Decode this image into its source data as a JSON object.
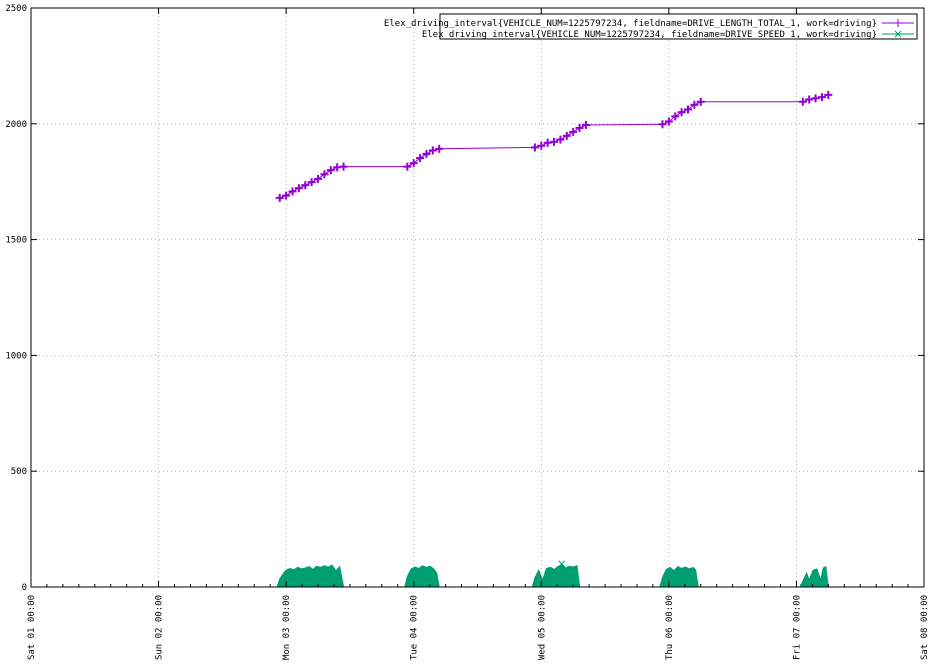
{
  "chart_data": {
    "type": "line",
    "title": "",
    "xlabel": "",
    "ylabel": "",
    "grid": true,
    "legend_position": "top-right",
    "ylim": [
      0,
      2500
    ],
    "yticks": [
      0,
      500,
      1000,
      1500,
      2000,
      2500
    ],
    "ytick_labels": [
      "0",
      "500",
      "1000",
      "1500",
      "2000",
      "2500"
    ],
    "xlim_days": [
      0,
      7
    ],
    "xticks": [
      {
        "day": 0,
        "label": "Sat 01 00:00"
      },
      {
        "day": 1,
        "label": "Sun 02 00:00"
      },
      {
        "day": 2,
        "label": "Mon 03 00:00"
      },
      {
        "day": 3,
        "label": "Tue 04 00:00"
      },
      {
        "day": 4,
        "label": "Wed 05 00:00"
      },
      {
        "day": 5,
        "label": "Thu 06 00:00"
      },
      {
        "day": 6,
        "label": "Fri 07 00:00"
      },
      {
        "day": 7,
        "label": "Sat 08 00:00"
      }
    ],
    "series": [
      {
        "name": "Elex_driving_interval{VEHICLE_NUM=1225797234, fieldname=DRIVE_LENGTH_TOTAL_1, work=driving}",
        "color": "#9400d3",
        "style": "linespoints",
        "marker": "plus",
        "points": [
          [
            1.95,
            1680
          ],
          [
            2.0,
            1690
          ],
          [
            2.05,
            1708
          ],
          [
            2.1,
            1722
          ],
          [
            2.15,
            1735
          ],
          [
            2.2,
            1748
          ],
          [
            2.25,
            1762
          ],
          [
            2.3,
            1782
          ],
          [
            2.35,
            1800
          ],
          [
            2.4,
            1812
          ],
          [
            2.45,
            1815
          ],
          [
            2.95,
            1815
          ],
          [
            3.0,
            1830
          ],
          [
            3.05,
            1852
          ],
          [
            3.1,
            1870
          ],
          [
            3.15,
            1885
          ],
          [
            3.2,
            1892
          ],
          [
            3.95,
            1898
          ],
          [
            4.0,
            1905
          ],
          [
            4.05,
            1918
          ],
          [
            4.1,
            1922
          ],
          [
            4.15,
            1932
          ],
          [
            4.2,
            1948
          ],
          [
            4.25,
            1965
          ],
          [
            4.3,
            1982
          ],
          [
            4.35,
            1995
          ],
          [
            4.95,
            1998
          ],
          [
            5.0,
            2010
          ],
          [
            5.05,
            2032
          ],
          [
            5.1,
            2050
          ],
          [
            5.15,
            2062
          ],
          [
            5.2,
            2082
          ],
          [
            5.25,
            2095
          ],
          [
            6.05,
            2095
          ],
          [
            6.1,
            2105
          ],
          [
            6.15,
            2110
          ],
          [
            6.2,
            2115
          ],
          [
            6.25,
            2125
          ]
        ]
      },
      {
        "name": "Elex_driving_interval{VEHICLE_NUM=1225797234, fieldname=DRIVE_SPEED_1, work=driving}",
        "color": "#009e73",
        "style": "linespoints",
        "marker": "x",
        "segments": [
          {
            "start": 1.93,
            "end": 2.45,
            "points": [
              [
                1.93,
                0
              ],
              [
                1.95,
                35
              ],
              [
                1.98,
                60
              ],
              [
                2.0,
                72
              ],
              [
                2.03,
                80
              ],
              [
                2.06,
                74
              ],
              [
                2.09,
                85
              ],
              [
                2.12,
                78
              ],
              [
                2.15,
                82
              ],
              [
                2.18,
                88
              ],
              [
                2.21,
                76
              ],
              [
                2.24,
                90
              ],
              [
                2.27,
                84
              ],
              [
                2.3,
                92
              ],
              [
                2.33,
                86
              ],
              [
                2.36,
                94
              ],
              [
                2.39,
                70
              ],
              [
                2.42,
                88
              ],
              [
                2.45,
                0
              ]
            ]
          },
          {
            "start": 2.93,
            "end": 3.2,
            "points": [
              [
                2.93,
                0
              ],
              [
                2.95,
                45
              ],
              [
                2.98,
                78
              ],
              [
                3.01,
                86
              ],
              [
                3.04,
                80
              ],
              [
                3.07,
                92
              ],
              [
                3.1,
                84
              ],
              [
                3.13,
                90
              ],
              [
                3.16,
                76
              ],
              [
                3.18,
                60
              ],
              [
                3.2,
                0
              ]
            ]
          },
          {
            "start": 3.93,
            "end": 4.3,
            "points": [
              [
                3.93,
                0
              ],
              [
                3.95,
                40
              ],
              [
                3.98,
                72
              ],
              [
                4.01,
                30
              ],
              [
                4.04,
                80
              ],
              [
                4.07,
                85
              ],
              [
                4.1,
                76
              ],
              [
                4.13,
                88
              ],
              [
                4.16,
                95
              ],
              [
                4.19,
                82
              ],
              [
                4.22,
                90
              ],
              [
                4.25,
                86
              ],
              [
                4.28,
                92
              ],
              [
                4.3,
                0
              ]
            ]
          },
          {
            "start": 4.93,
            "end": 5.23,
            "points": [
              [
                4.93,
                0
              ],
              [
                4.95,
                42
              ],
              [
                4.98,
                76
              ],
              [
                5.01,
                84
              ],
              [
                5.04,
                70
              ],
              [
                5.07,
                88
              ],
              [
                5.1,
                80
              ],
              [
                5.13,
                86
              ],
              [
                5.16,
                78
              ],
              [
                5.19,
                84
              ],
              [
                5.21,
                74
              ],
              [
                5.23,
                0
              ]
            ]
          },
          {
            "start": 6.03,
            "end": 6.25,
            "points": [
              [
                6.03,
                0
              ],
              [
                6.05,
                25
              ],
              [
                6.08,
                60
              ],
              [
                6.1,
                30
              ],
              [
                6.13,
                72
              ],
              [
                6.16,
                78
              ],
              [
                6.19,
                30
              ],
              [
                6.21,
                82
              ],
              [
                6.23,
                88
              ],
              [
                6.25,
                0
              ]
            ]
          }
        ]
      }
    ]
  }
}
